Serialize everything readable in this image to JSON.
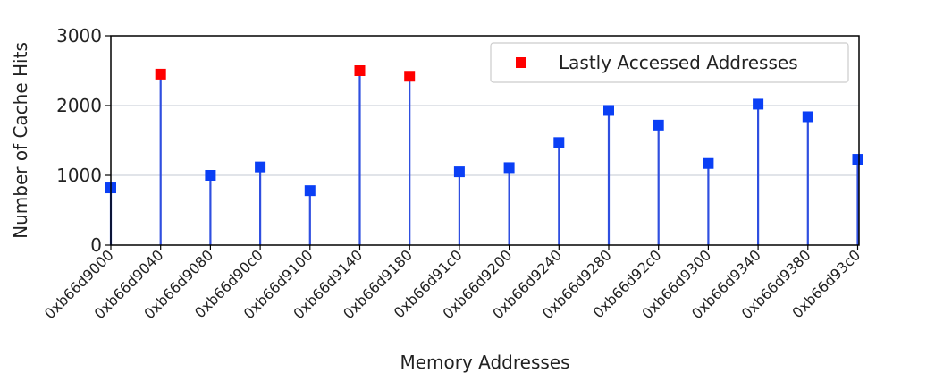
{
  "chart_data": {
    "type": "stem",
    "xlabel": "Memory Addresses",
    "ylabel": "Number of Cache Hits",
    "ylim": [
      0,
      3000
    ],
    "yticks": [
      0,
      1000,
      2000,
      3000
    ],
    "grid": "horizontal",
    "legend": {
      "position": "top-right",
      "entries": [
        "Lastly Accessed Addresses"
      ]
    },
    "categories": [
      "0xb66d9000",
      "0xb66d9040",
      "0xb66d9080",
      "0xb66d90c0",
      "0xb66d9100",
      "0xb66d9140",
      "0xb66d9180",
      "0xb66d91c0",
      "0xb66d9200",
      "0xb66d9240",
      "0xb66d9280",
      "0xb66d92c0",
      "0xb66d9300",
      "0xb66d9340",
      "0xb66d9380",
      "0xb66d93c0"
    ],
    "values": [
      820,
      2450,
      1000,
      1120,
      780,
      2500,
      2420,
      1050,
      1110,
      1470,
      1930,
      1720,
      1170,
      2020,
      1840,
      1230
    ],
    "highlighted": [
      false,
      true,
      false,
      false,
      false,
      true,
      true,
      false,
      false,
      false,
      false,
      false,
      false,
      false,
      false,
      false
    ],
    "colors": {
      "normal": "#0a3ff5",
      "highlight": "#ff0000",
      "stem": "#2f4fe0",
      "grid": "#cfd3dc"
    }
  }
}
